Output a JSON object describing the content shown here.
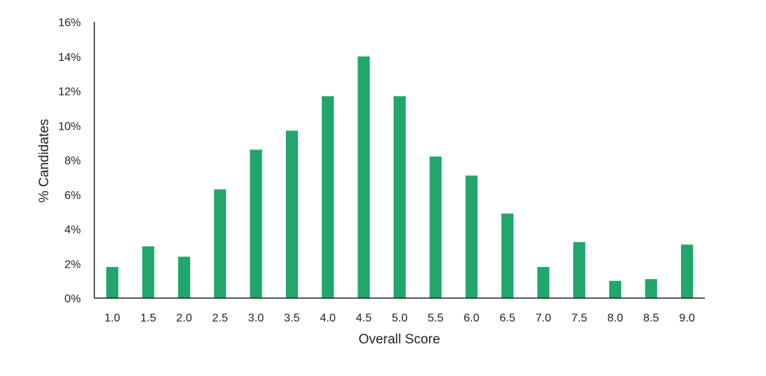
{
  "chart_data": {
    "type": "bar",
    "title": "",
    "xlabel": "Overall Score",
    "ylabel": "% Candidates",
    "categories": [
      "1.0",
      "1.5",
      "2.0",
      "2.5",
      "3.0",
      "3.5",
      "4.0",
      "4.5",
      "5.0",
      "5.5",
      "6.0",
      "6.5",
      "7.0",
      "7.5",
      "8.0",
      "8.5",
      "9.0"
    ],
    "values": [
      1.8,
      3.0,
      2.4,
      6.3,
      8.6,
      9.7,
      11.7,
      14.0,
      11.7,
      8.2,
      7.1,
      4.9,
      1.8,
      3.25,
      1.0,
      1.1,
      3.1
    ],
    "ylim": [
      0,
      16
    ],
    "yticks": [
      0,
      2,
      4,
      6,
      8,
      10,
      12,
      14,
      16
    ],
    "ytick_labels": [
      "0%",
      "2%",
      "4%",
      "6%",
      "8%",
      "10%",
      "12%",
      "14%",
      "16%"
    ],
    "grid": false,
    "bar_color": "#21A66B"
  }
}
